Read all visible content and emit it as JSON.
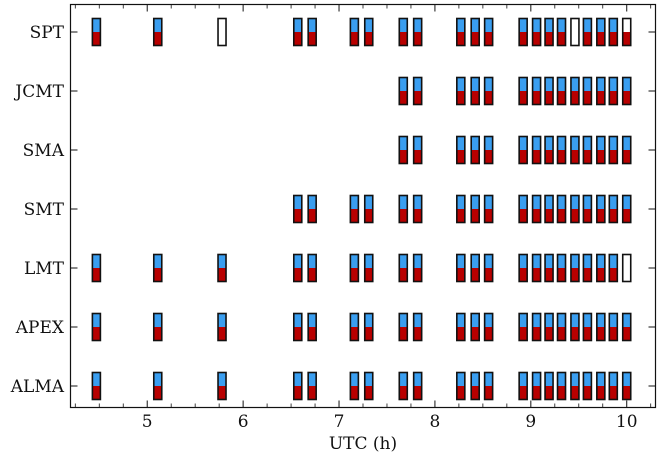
{
  "chart_data": {
    "type": "scatter",
    "title": "",
    "xlabel": "UTC (h)",
    "ylabel": "",
    "xlim": [
      4.2,
      10.3
    ],
    "xticks": [
      5,
      6,
      7,
      8,
      9,
      10
    ],
    "xtick_labels": [
      "5",
      "6",
      "7",
      "8",
      "9",
      "10"
    ],
    "stations": [
      "SPT",
      "JCMT",
      "SMA",
      "SMT",
      "LMT",
      "APEX",
      "ALMA"
    ],
    "colors": {
      "top": "#3a9ef0",
      "bottom": "#b80000",
      "outline": "#111111",
      "empty": "#ffffff"
    },
    "scans": [
      {
        "station": "SPT",
        "times": [
          4.47,
          5.11,
          5.78,
          6.57,
          6.72,
          7.16,
          7.31,
          7.67,
          7.82,
          8.27,
          8.42,
          8.56,
          8.92,
          9.06,
          9.19,
          9.32,
          9.46,
          9.59,
          9.73,
          9.86,
          10.0
        ],
        "status": [
          "full",
          "full",
          "empty",
          "full",
          "full",
          "full",
          "full",
          "full",
          "full",
          "full",
          "full",
          "full",
          "full",
          "full",
          "full",
          "full",
          "empty",
          "full",
          "full",
          "full",
          "bottom-only"
        ]
      },
      {
        "station": "JCMT",
        "times": [
          7.67,
          7.82,
          8.27,
          8.42,
          8.56,
          8.92,
          9.06,
          9.19,
          9.32,
          9.46,
          9.59,
          9.73,
          9.86,
          10.0
        ],
        "status": [
          "full",
          "full",
          "full",
          "full",
          "full",
          "full",
          "full",
          "full",
          "full",
          "full",
          "full",
          "full",
          "full",
          "full"
        ]
      },
      {
        "station": "SMA",
        "times": [
          7.67,
          7.82,
          8.27,
          8.42,
          8.56,
          8.92,
          9.06,
          9.19,
          9.32,
          9.46,
          9.59,
          9.73,
          9.86,
          10.0
        ],
        "status": [
          "full",
          "full",
          "full",
          "full",
          "full",
          "full",
          "full",
          "full",
          "full",
          "full",
          "full",
          "full",
          "full",
          "full"
        ]
      },
      {
        "station": "SMT",
        "times": [
          6.57,
          6.72,
          7.16,
          7.31,
          7.67,
          7.82,
          8.27,
          8.42,
          8.56,
          8.92,
          9.06,
          9.19,
          9.32,
          9.46,
          9.59,
          9.73,
          9.86,
          10.0
        ],
        "status": [
          "full",
          "full",
          "full",
          "full",
          "full",
          "full",
          "full",
          "full",
          "full",
          "full",
          "full",
          "full",
          "full",
          "full",
          "full",
          "full",
          "full",
          "full"
        ]
      },
      {
        "station": "LMT",
        "times": [
          4.47,
          5.11,
          5.78,
          6.57,
          6.72,
          7.16,
          7.31,
          7.67,
          7.82,
          8.27,
          8.42,
          8.56,
          8.92,
          9.06,
          9.19,
          9.32,
          9.46,
          9.59,
          9.73,
          9.86,
          10.0
        ],
        "status": [
          "full",
          "full",
          "full",
          "full",
          "full",
          "full",
          "full",
          "full",
          "full",
          "full",
          "full",
          "full",
          "full",
          "full",
          "full",
          "full",
          "full",
          "full",
          "full",
          "full",
          "empty"
        ]
      },
      {
        "station": "APEX",
        "times": [
          4.47,
          5.11,
          5.78,
          6.57,
          6.72,
          7.16,
          7.31,
          7.67,
          7.82,
          8.27,
          8.42,
          8.56,
          8.92,
          9.06,
          9.19,
          9.32,
          9.46,
          9.59,
          9.73,
          9.86,
          10.0
        ],
        "status": [
          "full",
          "full",
          "full",
          "full",
          "full",
          "full",
          "full",
          "full",
          "full",
          "full",
          "full",
          "full",
          "full",
          "full",
          "full",
          "full",
          "full",
          "full",
          "full",
          "full",
          "full"
        ]
      },
      {
        "station": "ALMA",
        "times": [
          4.47,
          5.11,
          5.78,
          6.57,
          6.72,
          7.16,
          7.31,
          7.67,
          7.82,
          8.27,
          8.42,
          8.56,
          8.92,
          9.06,
          9.19,
          9.32,
          9.46,
          9.59,
          9.73,
          9.86,
          10.0
        ],
        "status": [
          "full",
          "full",
          "full",
          "full",
          "full",
          "full",
          "full",
          "full",
          "full",
          "full",
          "full",
          "full",
          "full",
          "full",
          "full",
          "full",
          "full",
          "full",
          "full",
          "full",
          "full"
        ]
      }
    ]
  }
}
